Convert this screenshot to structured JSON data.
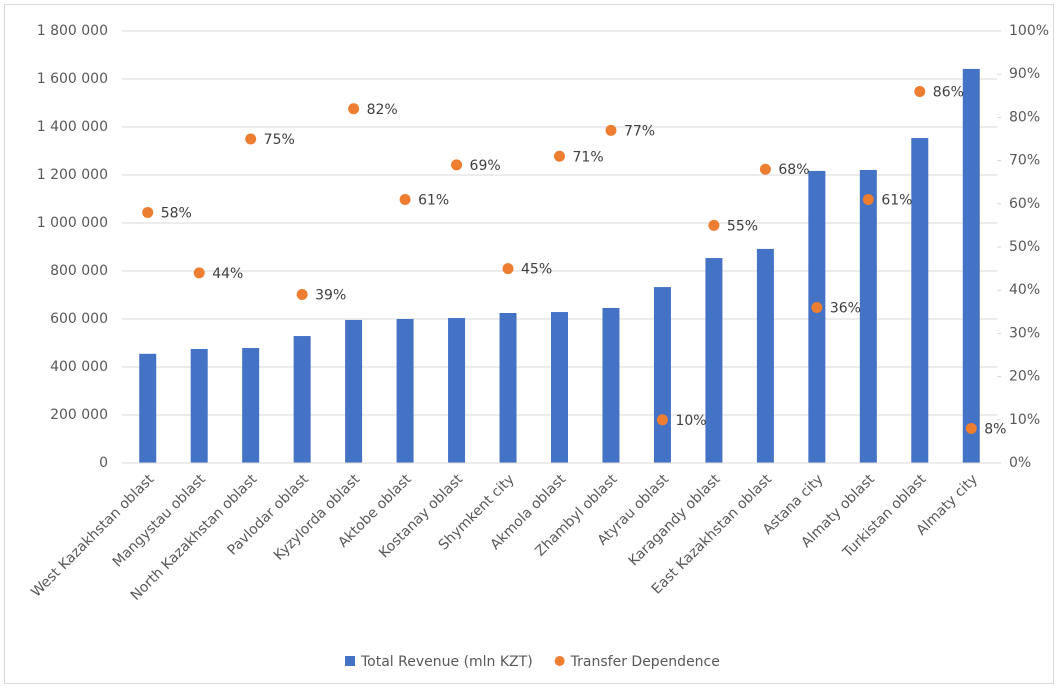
{
  "chart_data": {
    "type": "bar",
    "categories": [
      "West Kazakhstan oblast",
      "Mangystau oblast",
      "North Kazakhstan oblast",
      "Pavlodar oblast",
      "Kyzylorda oblast",
      "Aktobe oblast",
      "Kostanay oblast",
      "Shymkent city",
      "Akmola oblast",
      "Zhambyl oblast",
      "Atyrau oblast",
      "Karagandy oblast",
      "East Kazakhstan  oblast",
      "Astana city",
      "Almaty oblast",
      "Turkistan oblast",
      "Almaty city"
    ],
    "series": [
      {
        "name": "Total Revenue (mln KZT)",
        "type": "bar",
        "color": "#4472c4",
        "values": [
          455000,
          475000,
          479000,
          529000,
          596000,
          600000,
          604000,
          625000,
          629000,
          646000,
          733000,
          854000,
          892000,
          1217000,
          1221000,
          1354000,
          1642000
        ]
      },
      {
        "name": "Transfer Dependence",
        "type": "scatter",
        "axis": "y2",
        "color": "#ed7d31",
        "values": [
          58,
          44,
          75,
          39,
          82,
          61,
          69,
          45,
          71,
          77,
          10,
          55,
          68,
          36,
          61,
          86,
          8
        ],
        "value_labels": [
          "58%",
          "44%",
          "75%",
          "39%",
          "82%",
          "61%",
          "69%",
          "45%",
          "71%",
          "77%",
          "10%",
          "55%",
          "68%",
          "36%",
          "61%",
          "86%",
          "8%"
        ]
      }
    ],
    "ylim": [
      0,
      1800000
    ],
    "yticks": [
      0,
      {
        "value": 200000,
        "label": "200 000"
      },
      {
        "value": 400000,
        "label": "400 000"
      },
      {
        "value": 600000,
        "label": "600 000"
      },
      {
        "value": 800000,
        "label": "800 000"
      },
      {
        "value": 1000000,
        "label": "1 000 000"
      },
      {
        "value": 1200000,
        "label": "1 200 000"
      },
      {
        "value": 1400000,
        "label": "1 400 000"
      },
      {
        "value": 1600000,
        "label": "1 600 000"
      },
      {
        "value": 1800000,
        "label": "1 800 000"
      }
    ],
    "y2lim": [
      0,
      100
    ],
    "y2ticks": [
      {
        "value": 0,
        "label": "0%"
      },
      {
        "value": 10,
        "label": "10%"
      },
      {
        "value": 20,
        "label": "20%"
      },
      {
        "value": 30,
        "label": "30%"
      },
      {
        "value": 40,
        "label": "40%"
      },
      {
        "value": 50,
        "label": "50%"
      },
      {
        "value": 60,
        "label": "60%"
      },
      {
        "value": 70,
        "label": "70%"
      },
      {
        "value": 80,
        "label": "80%"
      },
      {
        "value": 90,
        "label": "90%"
      },
      {
        "value": 100,
        "label": "100%"
      }
    ],
    "grid": true,
    "legend": "bottom"
  }
}
